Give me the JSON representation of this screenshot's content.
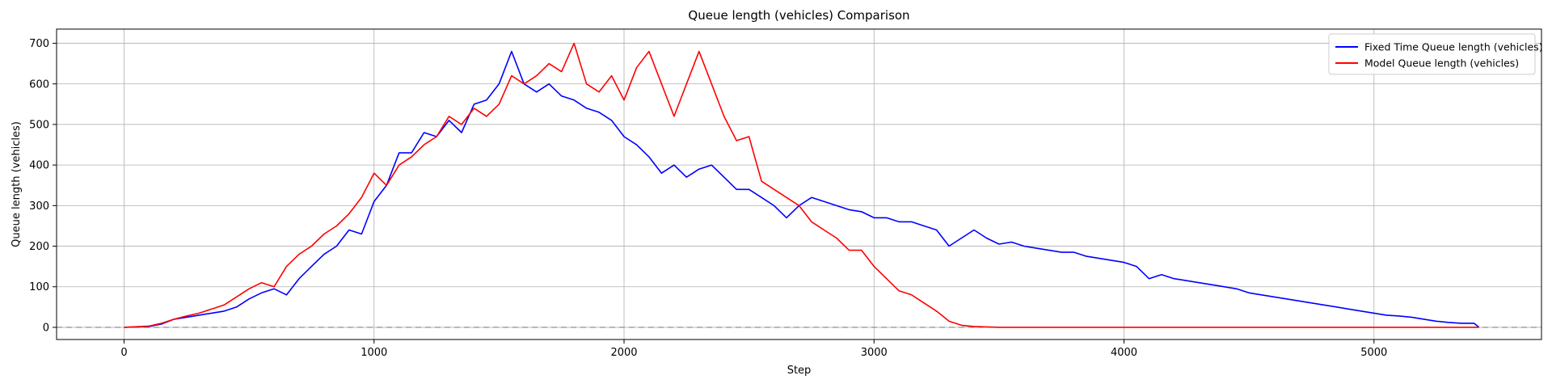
{
  "chart_data": {
    "type": "line",
    "title": "Queue length (vehicles) Comparison",
    "xlabel": "Step",
    "ylabel": "Queue length (vehicles)",
    "xlim": [
      -270,
      5670
    ],
    "ylim": [
      -30,
      735
    ],
    "xticks": [
      0,
      1000,
      2000,
      3000,
      4000,
      5000
    ],
    "yticks": [
      0,
      100,
      200,
      300,
      400,
      500,
      600,
      700
    ],
    "grid": true,
    "legend_position": "top-right",
    "reference_line": {
      "y": 0,
      "style": "dashed",
      "color": "#808080"
    },
    "series": [
      {
        "name": "Fixed Time Queue length (vehicles)",
        "color": "#0000ff",
        "x": [
          0,
          100,
          150,
          200,
          250,
          300,
          350,
          400,
          450,
          500,
          550,
          600,
          650,
          700,
          750,
          800,
          850,
          900,
          950,
          1000,
          1050,
          1100,
          1150,
          1200,
          1250,
          1300,
          1350,
          1400,
          1450,
          1500,
          1550,
          1600,
          1650,
          1700,
          1750,
          1800,
          1850,
          1900,
          1950,
          2000,
          2050,
          2100,
          2150,
          2200,
          2250,
          2300,
          2350,
          2400,
          2450,
          2500,
          2550,
          2600,
          2650,
          2700,
          2750,
          2800,
          2850,
          2900,
          2950,
          3000,
          3050,
          3100,
          3150,
          3200,
          3250,
          3300,
          3350,
          3400,
          3450,
          3500,
          3550,
          3600,
          3650,
          3700,
          3750,
          3800,
          3850,
          3900,
          3950,
          4000,
          4050,
          4100,
          4150,
          4200,
          4250,
          4300,
          4350,
          4400,
          4450,
          4500,
          4550,
          4600,
          4650,
          4700,
          4750,
          4800,
          4850,
          4900,
          4950,
          5000,
          5050,
          5100,
          5150,
          5200,
          5250,
          5300,
          5350,
          5400,
          5420
        ],
        "y": [
          0,
          2,
          8,
          20,
          25,
          30,
          35,
          40,
          50,
          70,
          85,
          95,
          80,
          120,
          150,
          180,
          200,
          240,
          230,
          310,
          350,
          430,
          430,
          480,
          470,
          510,
          480,
          550,
          560,
          600,
          680,
          600,
          580,
          600,
          570,
          560,
          540,
          530,
          510,
          470,
          450,
          420,
          380,
          400,
          370,
          390,
          400,
          370,
          340,
          340,
          320,
          300,
          270,
          300,
          320,
          310,
          300,
          290,
          285,
          270,
          270,
          260,
          260,
          250,
          240,
          200,
          220,
          240,
          220,
          205,
          210,
          200,
          195,
          190,
          185,
          185,
          175,
          170,
          165,
          160,
          150,
          120,
          130,
          120,
          115,
          110,
          105,
          100,
          95,
          85,
          80,
          75,
          70,
          65,
          60,
          55,
          50,
          45,
          40,
          35,
          30,
          28,
          25,
          20,
          15,
          12,
          10,
          10,
          0
        ]
      },
      {
        "name": "Model Queue length (vehicles)",
        "color": "#ff0000",
        "x": [
          0,
          100,
          150,
          200,
          250,
          300,
          350,
          400,
          450,
          500,
          550,
          600,
          650,
          700,
          750,
          800,
          850,
          900,
          950,
          1000,
          1050,
          1100,
          1150,
          1200,
          1250,
          1300,
          1350,
          1400,
          1450,
          1500,
          1550,
          1600,
          1650,
          1700,
          1750,
          1800,
          1850,
          1900,
          1950,
          2000,
          2050,
          2100,
          2150,
          2200,
          2250,
          2300,
          2350,
          2400,
          2450,
          2500,
          2550,
          2600,
          2650,
          2700,
          2750,
          2800,
          2850,
          2900,
          2950,
          3000,
          3050,
          3100,
          3150,
          3200,
          3250,
          3300,
          3350,
          3400,
          3450,
          3500,
          3600,
          3800,
          4000,
          4200,
          4400,
          4600,
          4800,
          5000,
          5200,
          5420
        ],
        "y": [
          0,
          3,
          10,
          20,
          28,
          35,
          45,
          55,
          75,
          95,
          110,
          100,
          150,
          180,
          200,
          230,
          250,
          280,
          320,
          380,
          350,
          400,
          420,
          450,
          470,
          520,
          500,
          540,
          520,
          550,
          620,
          600,
          620,
          650,
          630,
          700,
          600,
          580,
          620,
          560,
          640,
          680,
          600,
          520,
          600,
          680,
          600,
          520,
          460,
          470,
          360,
          340,
          320,
          300,
          260,
          240,
          220,
          190,
          190,
          150,
          120,
          90,
          80,
          60,
          40,
          15,
          5,
          2,
          1,
          0,
          0,
          0,
          0,
          0,
          0,
          0,
          0,
          0,
          0,
          0
        ]
      }
    ]
  }
}
